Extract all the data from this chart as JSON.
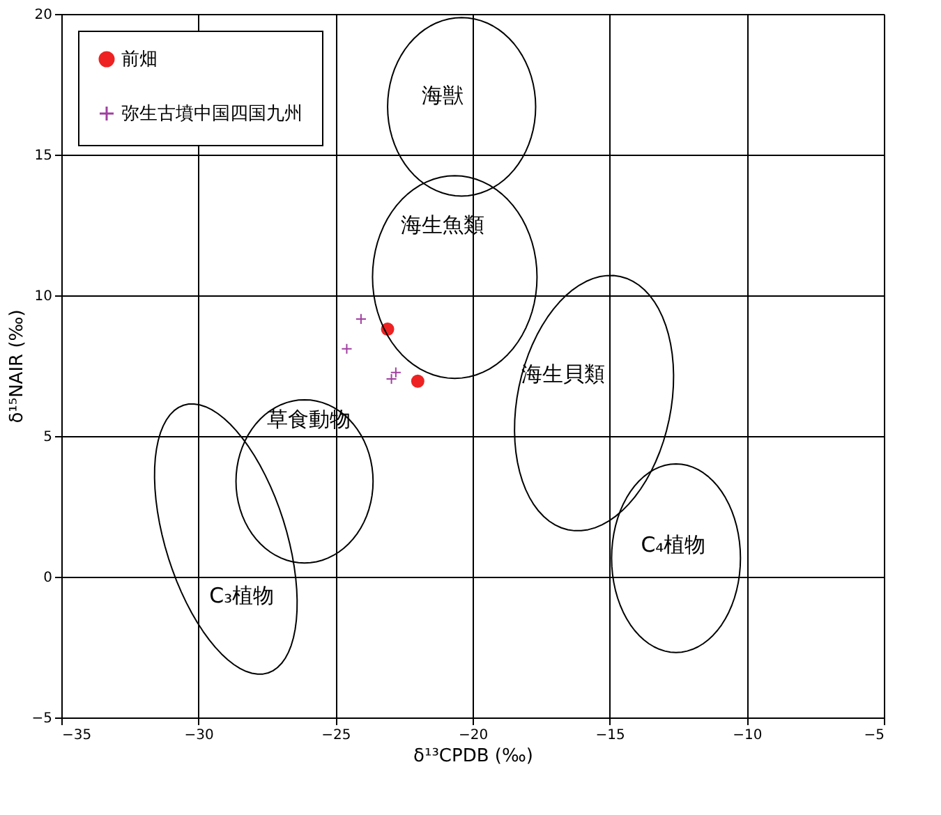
{
  "chart_data": {
    "type": "scatter",
    "xlabel": "δ¹³CPDB (‰)",
    "ylabel": "δ¹⁵NAIR (‰)",
    "xlim": [
      -35,
      -5
    ],
    "xticks": [
      -35,
      -30,
      -25,
      -20,
      -15,
      -10,
      -5
    ],
    "ylim": [
      -5,
      20
    ],
    "yticks": [
      -5,
      0,
      5,
      10,
      15,
      20
    ],
    "grid": true,
    "legend": "top left",
    "series": [
      {
        "name": "前畑",
        "color": "#ee2222",
        "marker": "circle",
        "x": [
          -23.1,
          -22.0
        ],
        "values": [
          8.8,
          6.95
        ]
      },
      {
        "name": "弥生古墳中国四国九州",
        "color": "#a040a0",
        "marker": "cross",
        "x": [
          -24.07,
          -24.59,
          -22.8,
          -22.96
        ],
        "values": [
          9.16,
          8.1,
          7.26,
          7.03
        ]
      }
    ],
    "annotations": [
      "海獣",
      "海生魚類",
      "海生貝類",
      "C₄植物",
      "草食動物",
      "C₃植物"
    ]
  }
}
